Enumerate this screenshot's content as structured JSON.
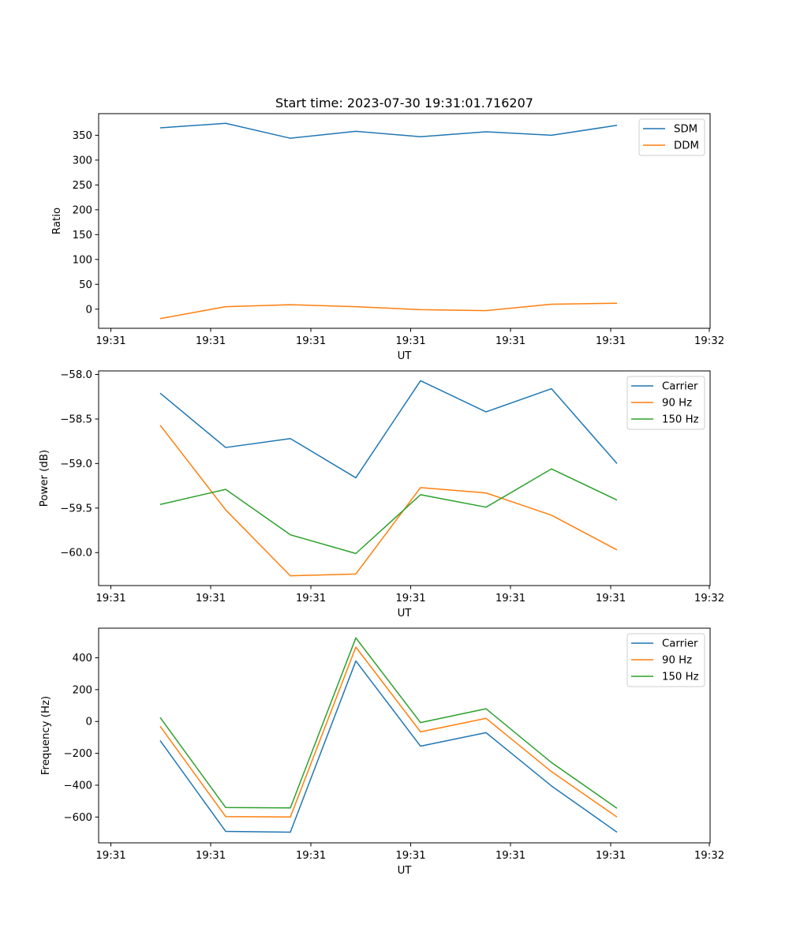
{
  "colors": {
    "blue": "#1f77b4",
    "orange": "#ff7f0e",
    "green": "#2ca02c"
  },
  "chart_data": [
    {
      "type": "line",
      "title": "Start time: 2023-07-30 19:31:01.716207",
      "xlabel": "UT",
      "ylabel": "Ratio",
      "x_ticks": [
        "19:31",
        "19:31",
        "19:31",
        "19:31",
        "19:31",
        "19:31",
        "19:32"
      ],
      "y_ticks": [
        "0",
        "50",
        "100",
        "150",
        "200",
        "250",
        "300",
        "350"
      ],
      "ylim": [
        -38.5,
        393.5
      ],
      "legend": "upper right",
      "x": [
        1,
        2,
        3,
        4,
        5,
        6,
        7,
        8
      ],
      "series": [
        {
          "name": "SDM",
          "color": "blue",
          "values": [
            365,
            374,
            344,
            358,
            347,
            357,
            350,
            370
          ]
        },
        {
          "name": "DDM",
          "color": "orange",
          "values": [
            -19,
            5,
            9,
            5,
            -1,
            -3,
            10,
            12
          ]
        }
      ]
    },
    {
      "type": "line",
      "title": "",
      "xlabel": "UT",
      "ylabel": "Power (dB)",
      "x_ticks": [
        "19:31",
        "19:31",
        "19:31",
        "19:31",
        "19:31",
        "19:31",
        "19:32"
      ],
      "y_ticks": [
        "−58.0",
        "−58.5",
        "−59.0",
        "−59.5",
        "−60.0"
      ],
      "ylim": [
        -60.37,
        -57.96
      ],
      "legend": "upper right",
      "x": [
        1,
        2,
        3,
        4,
        5,
        6,
        7,
        8
      ],
      "series": [
        {
          "name": "Carrier",
          "color": "blue",
          "values": [
            -58.21,
            -58.82,
            -58.72,
            -59.16,
            -58.07,
            -58.42,
            -58.16,
            -59.0
          ]
        },
        {
          "name": "90 Hz",
          "color": "orange",
          "values": [
            -58.57,
            -59.52,
            -60.26,
            -60.24,
            -59.27,
            -59.33,
            -59.58,
            -59.97
          ]
        },
        {
          "name": "150 Hz",
          "color": "green",
          "values": [
            -59.46,
            -59.29,
            -59.8,
            -60.01,
            -59.35,
            -59.49,
            -59.06,
            -59.41
          ]
        }
      ]
    },
    {
      "type": "line",
      "title": "",
      "xlabel": "UT",
      "ylabel": "Frequency (Hz)",
      "x_ticks": [
        "19:31",
        "19:31",
        "19:31",
        "19:31",
        "19:31",
        "19:31",
        "19:32"
      ],
      "y_ticks": [
        "−600",
        "−400",
        "−200",
        "0",
        "200",
        "400"
      ],
      "ylim": [
        -762,
        586
      ],
      "legend": "upper right",
      "x": [
        1,
        2,
        3,
        4,
        5,
        6,
        7,
        8
      ],
      "series": [
        {
          "name": "Carrier",
          "color": "blue",
          "values": [
            -120,
            -690,
            -695,
            380,
            -155,
            -70,
            -405,
            -695
          ]
        },
        {
          "name": "90 Hz",
          "color": "orange",
          "values": [
            -30,
            -597,
            -600,
            467,
            -65,
            20,
            -315,
            -600
          ]
        },
        {
          "name": "150 Hz",
          "color": "green",
          "values": [
            25,
            -540,
            -543,
            525,
            -7,
            80,
            -258,
            -545
          ]
        }
      ]
    }
  ]
}
